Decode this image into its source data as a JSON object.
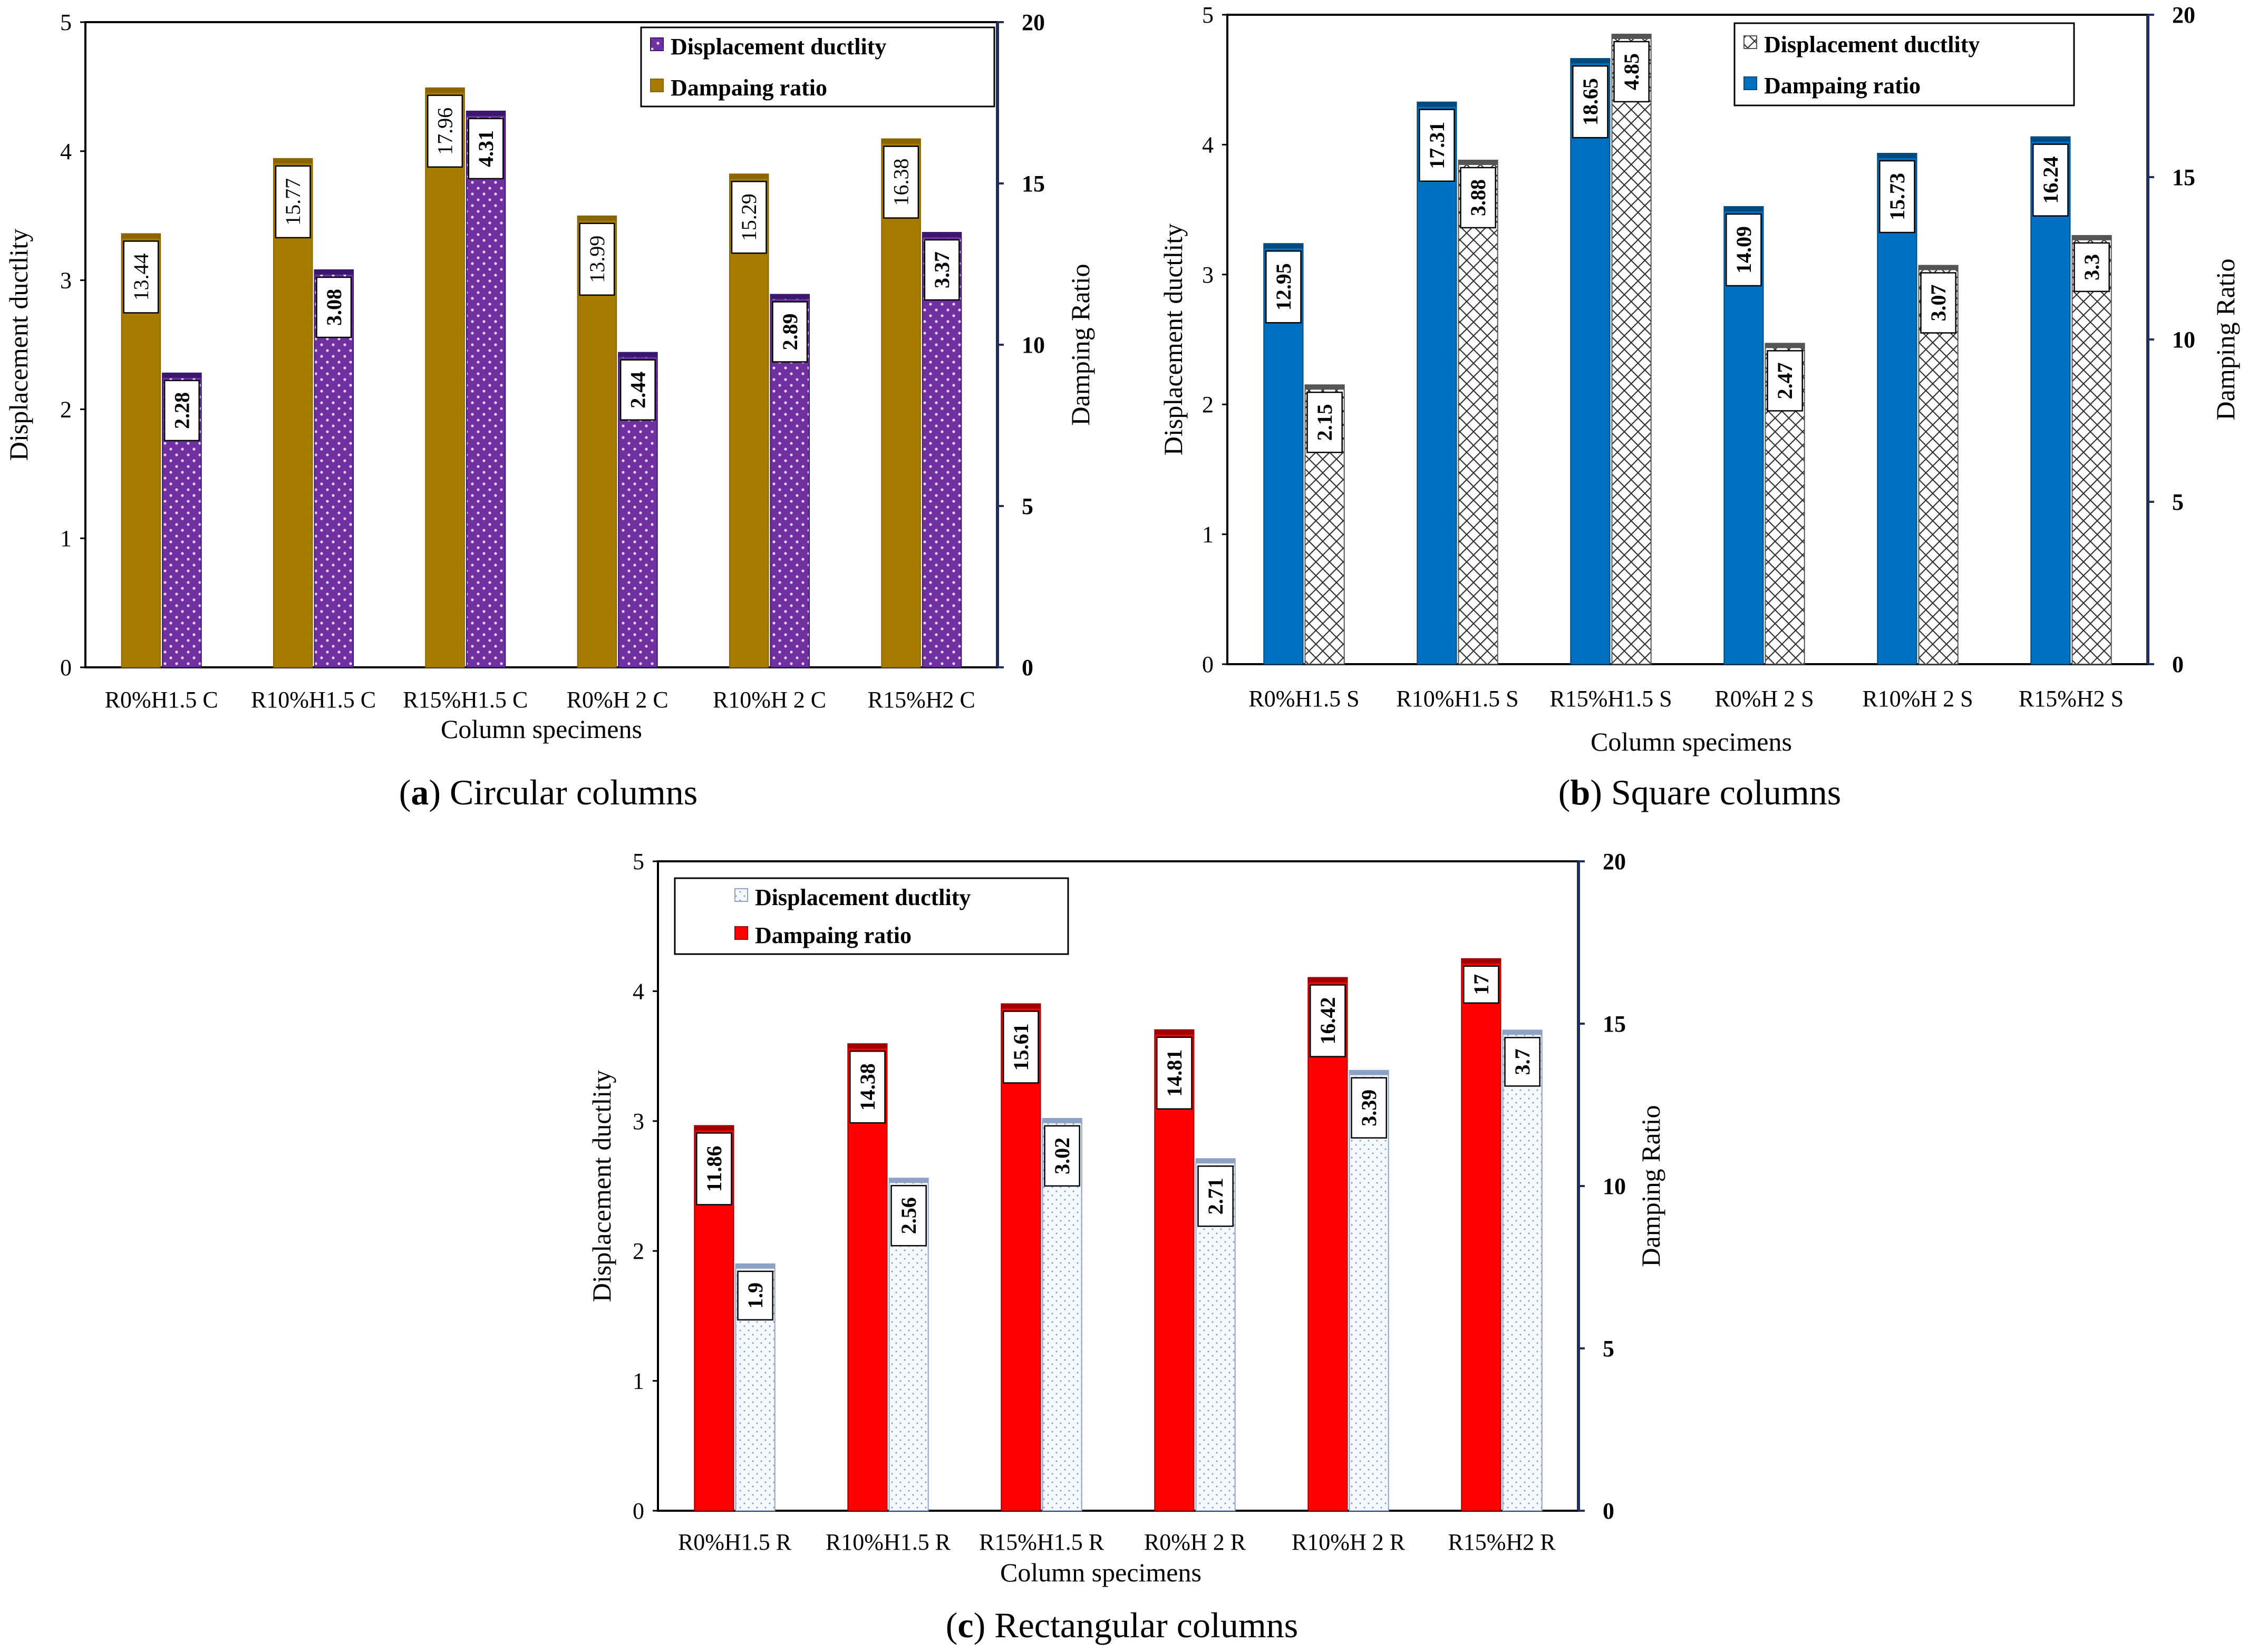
{
  "chart_data": [
    {
      "type": "bar",
      "caption_letter": "a",
      "caption_open": "(",
      "caption_close": ")",
      "caption_text": " Circular columns",
      "xlabel": "Column specimens",
      "ylabel_left": "Displacement ductlity",
      "ylabel_right": "Damping Ratio",
      "ylim_left": [
        0,
        5
      ],
      "ylim_right": [
        0,
        20
      ],
      "yticks_left": [
        "0",
        "1",
        "2",
        "3",
        "4",
        "5"
      ],
      "yticks_right": [
        "0",
        "5",
        "10",
        "15",
        "20"
      ],
      "categories": [
        "R0%H1.5 C",
        "R10%H1.5 C",
        "R15%H1.5 C",
        "R0%H 2 C",
        "R10%H 2 C",
        "R15%H2 C"
      ],
      "series": [
        {
          "name": "Dampaing ratio",
          "axis": "right",
          "values": [
            13.44,
            15.77,
            17.96,
            13.99,
            15.29,
            16.38
          ],
          "labels": [
            "13.44",
            "15.77",
            "17.96",
            "13.99",
            "15.29",
            "16.38"
          ],
          "color": "#A67C00",
          "top_color": "#8A6500",
          "pattern": "solid",
          "label_bold": false
        },
        {
          "name": "Displacement ductlity",
          "axis": "left",
          "values": [
            2.28,
            3.08,
            4.31,
            2.44,
            2.89,
            3.37
          ],
          "labels": [
            "2.28",
            "3.08",
            "4.31",
            "2.44",
            "2.89",
            "3.37"
          ],
          "color": "#7030A0",
          "top_color": "#3A1870",
          "pattern": "dots",
          "label_bold": true
        }
      ],
      "legend": [
        "Displacement ductlity",
        "Dampaing ratio"
      ]
    },
    {
      "type": "bar",
      "caption_letter": "b",
      "caption_open": "(",
      "caption_close": ")",
      "caption_text": " Square columns",
      "xlabel": "Column specimens",
      "ylabel_left": "Displacement ductlity",
      "ylabel_right": "Damping Ratio",
      "ylim_left": [
        0,
        5
      ],
      "ylim_right": [
        0,
        20
      ],
      "yticks_left": [
        "0",
        "1",
        "2",
        "3",
        "4",
        "5"
      ],
      "yticks_right": [
        "0",
        "5",
        "10",
        "15",
        "20"
      ],
      "categories": [
        "R0%H1.5 S",
        "R10%H1.5 S",
        "R15%H1.5 S",
        "R0%H 2 S",
        "R10%H 2 S",
        "R15%H2 S"
      ],
      "series": [
        {
          "name": "Dampaing ratio",
          "axis": "right",
          "values": [
            12.95,
            17.31,
            18.65,
            14.09,
            15.73,
            16.24
          ],
          "labels": [
            "12.95",
            "17.31",
            "18.65",
            "14.09",
            "15.73",
            "16.24"
          ],
          "color": "#0070C0",
          "top_color": "#004A80",
          "pattern": "solid",
          "label_bold": true
        },
        {
          "name": "Displacement ductlity",
          "axis": "left",
          "values": [
            2.15,
            3.88,
            4.85,
            2.47,
            3.07,
            3.3
          ],
          "labels": [
            "2.15",
            "3.88",
            "4.85",
            "2.47",
            "3.07",
            "3.3"
          ],
          "color": "#ffffff",
          "top_color": "#555555",
          "pattern": "cross",
          "label_bold": true
        }
      ],
      "legend": [
        "Displacement ductlity",
        "Dampaing ratio"
      ]
    },
    {
      "type": "bar",
      "caption_letter": "c",
      "caption_open": "(",
      "caption_close": ")",
      "caption_text": " Rectangular columns",
      "xlabel": "Column specimens",
      "ylabel_left": "Displacement ductlity",
      "ylabel_right": "Damping Ratio",
      "ylim_left": [
        0,
        5
      ],
      "ylim_right": [
        0,
        20
      ],
      "yticks_left": [
        "0",
        "1",
        "2",
        "3",
        "4",
        "5"
      ],
      "yticks_right": [
        "0",
        "5",
        "10",
        "15",
        "20"
      ],
      "categories": [
        "R0%H1.5 R",
        "R10%H1.5 R",
        "R15%H1.5 R",
        "R0%H 2 R",
        "R10%H 2 R",
        "R15%H2 R"
      ],
      "series": [
        {
          "name": "Dampaing ratio",
          "axis": "right",
          "values": [
            11.86,
            14.38,
            15.61,
            14.81,
            16.42,
            17
          ],
          "labels": [
            "11.86",
            "14.38",
            "15.61",
            "14.81",
            "16.42",
            "17"
          ],
          "color": "#FF0000",
          "top_color": "#A00000",
          "pattern": "solid",
          "label_bold": true
        },
        {
          "name": "Displacement ductlity",
          "axis": "left",
          "values": [
            1.9,
            2.56,
            3.02,
            2.71,
            3.39,
            3.7
          ],
          "labels": [
            "1.9",
            "2.56",
            "3.02",
            "2.71",
            "3.39",
            "3.7"
          ],
          "color": "#F4F7FC",
          "top_color": "#8EA2C8",
          "pattern": "finedots",
          "label_bold": true
        }
      ],
      "legend": [
        "Displacement ductlity",
        "Dampaing ratio"
      ]
    }
  ]
}
